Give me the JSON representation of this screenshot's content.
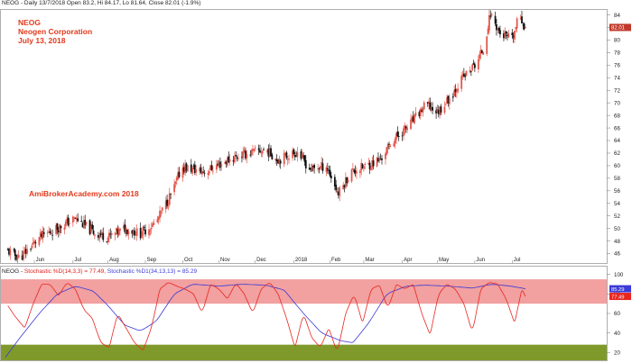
{
  "header": {
    "price_line": "NEOG - Daily 13/7/2018 Open 83.2, Hi 84.17, Lo 81.64, Close 82.01 (-1.9%)",
    "ticker": "NEOG",
    "company": "Neogen Corporation",
    "date": "July 13, 2018",
    "watermark": "AmiBrokerAcademy.com  2018"
  },
  "indicator_header": {
    "prefix": "NEOG - ",
    "stoch_d": "Stochastic %D(14,3,3) = 77.49,",
    "stoch_d1": "Stochastic %D1(34,13,13) = 85.29"
  },
  "colors": {
    "candle_up": "#e2574c",
    "candle_down": "#111111",
    "stoch_fast": "#e8261f",
    "stoch_slow": "#3a3ad6",
    "overbought_band": "#f2a0a0",
    "oversold_band": "#7f9a2a",
    "price_badge": "#c0392b",
    "d1_badge": "#3b3bd8"
  },
  "chart_data": [
    {
      "type": "candlestick",
      "title": "NEOG - Daily",
      "x_axis_labels": [
        "Jun",
        "Jul",
        "Aug",
        "Sep",
        "Oct",
        "Nov",
        "Dec",
        "2018",
        "Feb",
        "Mar",
        "Apr",
        "May",
        "Jun",
        "Jul"
      ],
      "y_ticks": [
        46,
        48,
        50,
        52,
        54,
        56,
        58,
        60,
        62,
        64,
        66,
        68,
        70,
        72,
        74,
        76,
        78,
        80,
        82,
        84
      ],
      "ylim": [
        44.5,
        84.8
      ],
      "last_price_label": "82.01",
      "close_anchor_points": [
        {
          "date": "2017-05-10",
          "close": 46.4
        },
        {
          "date": "2017-05-20",
          "close": 45.3
        },
        {
          "date": "2017-06-05",
          "close": 48.5
        },
        {
          "date": "2017-06-25",
          "close": 50.6
        },
        {
          "date": "2017-07-05",
          "close": 51.6
        },
        {
          "date": "2017-07-20",
          "close": 49.4
        },
        {
          "date": "2017-08-01",
          "close": 48.6
        },
        {
          "date": "2017-08-15",
          "close": 50.0
        },
        {
          "date": "2017-08-28",
          "close": 49.2
        },
        {
          "date": "2017-09-10",
          "close": 51.0
        },
        {
          "date": "2017-09-25",
          "close": 56.5
        },
        {
          "date": "2017-10-01",
          "close": 59.8
        },
        {
          "date": "2017-10-20",
          "close": 59.0
        },
        {
          "date": "2017-11-10",
          "close": 61.0
        },
        {
          "date": "2017-11-25",
          "close": 62.0
        },
        {
          "date": "2017-12-10",
          "close": 62.5
        },
        {
          "date": "2017-12-20",
          "close": 61.0
        },
        {
          "date": "2018-01-05",
          "close": 62.2
        },
        {
          "date": "2018-01-15",
          "close": 59.5
        },
        {
          "date": "2018-01-29",
          "close": 60.0
        },
        {
          "date": "2018-02-08",
          "close": 55.5
        },
        {
          "date": "2018-02-18",
          "close": 59.0
        },
        {
          "date": "2018-03-01",
          "close": 59.8
        },
        {
          "date": "2018-03-15",
          "close": 61.0
        },
        {
          "date": "2018-03-25",
          "close": 64.0
        },
        {
          "date": "2018-04-08",
          "close": 66.5
        },
        {
          "date": "2018-04-22",
          "close": 69.8
        },
        {
          "date": "2018-05-01",
          "close": 68.5
        },
        {
          "date": "2018-05-12",
          "close": 71.0
        },
        {
          "date": "2018-05-20",
          "close": 73.5
        },
        {
          "date": "2018-06-01",
          "close": 76.0
        },
        {
          "date": "2018-06-08",
          "close": 78.5
        },
        {
          "date": "2018-06-14",
          "close": 84.2
        },
        {
          "date": "2018-06-22",
          "close": 81.0
        },
        {
          "date": "2018-07-02",
          "close": 80.0
        },
        {
          "date": "2018-07-08",
          "close": 84.0
        },
        {
          "date": "2018-07-13",
          "close": 82.01
        }
      ],
      "legend": "none",
      "grid": false
    },
    {
      "type": "line",
      "title": "Stochastic",
      "y_ticks": [
        20,
        40,
        60,
        80,
        100
      ],
      "ylim": [
        12,
        108
      ],
      "overbought_band": [
        70,
        95
      ],
      "oversold_band": [
        12,
        28
      ],
      "series": [
        {
          "name": "Stochastic %D(14,3,3)",
          "last_value": "77.49",
          "anchor_points": [
            {
              "date": "2017-05-10",
              "value": 68
            },
            {
              "date": "2017-05-16",
              "value": 57
            },
            {
              "date": "2017-05-24",
              "value": 45
            },
            {
              "date": "2017-05-31",
              "value": 70
            },
            {
              "date": "2017-06-07",
              "value": 90
            },
            {
              "date": "2017-06-14",
              "value": 90
            },
            {
              "date": "2017-06-21",
              "value": 78
            },
            {
              "date": "2017-06-28",
              "value": 92
            },
            {
              "date": "2017-07-05",
              "value": 85
            },
            {
              "date": "2017-07-12",
              "value": 64
            },
            {
              "date": "2017-07-19",
              "value": 55
            },
            {
              "date": "2017-07-26",
              "value": 30
            },
            {
              "date": "2017-08-02",
              "value": 25
            },
            {
              "date": "2017-08-09",
              "value": 60
            },
            {
              "date": "2017-08-16",
              "value": 45
            },
            {
              "date": "2017-08-23",
              "value": 30
            },
            {
              "date": "2017-08-30",
              "value": 22
            },
            {
              "date": "2017-09-06",
              "value": 45
            },
            {
              "date": "2017-09-13",
              "value": 85
            },
            {
              "date": "2017-09-20",
              "value": 92
            },
            {
              "date": "2017-09-27",
              "value": 88
            },
            {
              "date": "2017-10-04",
              "value": 85
            },
            {
              "date": "2017-10-11",
              "value": 80
            },
            {
              "date": "2017-10-18",
              "value": 60
            },
            {
              "date": "2017-10-25",
              "value": 90
            },
            {
              "date": "2017-11-01",
              "value": 85
            },
            {
              "date": "2017-11-08",
              "value": 75
            },
            {
              "date": "2017-11-15",
              "value": 91
            },
            {
              "date": "2017-11-22",
              "value": 80
            },
            {
              "date": "2017-11-29",
              "value": 60
            },
            {
              "date": "2017-12-06",
              "value": 85
            },
            {
              "date": "2017-12-13",
              "value": 92
            },
            {
              "date": "2017-12-20",
              "value": 80
            },
            {
              "date": "2017-12-27",
              "value": 55
            },
            {
              "date": "2018-01-03",
              "value": 25
            },
            {
              "date": "2018-01-10",
              "value": 60
            },
            {
              "date": "2018-01-17",
              "value": 35
            },
            {
              "date": "2018-01-24",
              "value": 25
            },
            {
              "date": "2018-01-31",
              "value": 45
            },
            {
              "date": "2018-02-07",
              "value": 20
            },
            {
              "date": "2018-02-14",
              "value": 60
            },
            {
              "date": "2018-02-21",
              "value": 80
            },
            {
              "date": "2018-02-28",
              "value": 50
            },
            {
              "date": "2018-03-07",
              "value": 85
            },
            {
              "date": "2018-03-14",
              "value": 89
            },
            {
              "date": "2018-03-21",
              "value": 65
            },
            {
              "date": "2018-03-28",
              "value": 90
            },
            {
              "date": "2018-04-04",
              "value": 85
            },
            {
              "date": "2018-04-11",
              "value": 90
            },
            {
              "date": "2018-04-18",
              "value": 60
            },
            {
              "date": "2018-04-25",
              "value": 38
            },
            {
              "date": "2018-05-02",
              "value": 80
            },
            {
              "date": "2018-05-09",
              "value": 90
            },
            {
              "date": "2018-05-16",
              "value": 85
            },
            {
              "date": "2018-05-23",
              "value": 70
            },
            {
              "date": "2018-05-30",
              "value": 40
            },
            {
              "date": "2018-06-06",
              "value": 85
            },
            {
              "date": "2018-06-13",
              "value": 92
            },
            {
              "date": "2018-06-20",
              "value": 90
            },
            {
              "date": "2018-06-27",
              "value": 75
            },
            {
              "date": "2018-07-04",
              "value": 50
            },
            {
              "date": "2018-07-10",
              "value": 85
            },
            {
              "date": "2018-07-13",
              "value": 77.49
            }
          ]
        },
        {
          "name": "Stochastic %D1(34,13,13)",
          "last_value": "85.29",
          "anchor_points": [
            {
              "date": "2017-05-08",
              "value": 15
            },
            {
              "date": "2017-05-20",
              "value": 35
            },
            {
              "date": "2017-06-05",
              "value": 60
            },
            {
              "date": "2017-06-20",
              "value": 80
            },
            {
              "date": "2017-07-05",
              "value": 88
            },
            {
              "date": "2017-07-20",
              "value": 83
            },
            {
              "date": "2017-08-01",
              "value": 68
            },
            {
              "date": "2017-08-15",
              "value": 48
            },
            {
              "date": "2017-08-28",
              "value": 42
            },
            {
              "date": "2017-09-10",
              "value": 52
            },
            {
              "date": "2017-09-25",
              "value": 80
            },
            {
              "date": "2017-10-10",
              "value": 90
            },
            {
              "date": "2017-11-01",
              "value": 88
            },
            {
              "date": "2017-11-20",
              "value": 90
            },
            {
              "date": "2017-12-10",
              "value": 89
            },
            {
              "date": "2017-12-25",
              "value": 84
            },
            {
              "date": "2018-01-10",
              "value": 60
            },
            {
              "date": "2018-01-25",
              "value": 40
            },
            {
              "date": "2018-02-10",
              "value": 32
            },
            {
              "date": "2018-02-20",
              "value": 30
            },
            {
              "date": "2018-03-05",
              "value": 50
            },
            {
              "date": "2018-03-20",
              "value": 80
            },
            {
              "date": "2018-04-05",
              "value": 88
            },
            {
              "date": "2018-04-20",
              "value": 89
            },
            {
              "date": "2018-05-10",
              "value": 88
            },
            {
              "date": "2018-05-30",
              "value": 86
            },
            {
              "date": "2018-06-15",
              "value": 90
            },
            {
              "date": "2018-07-01",
              "value": 88
            },
            {
              "date": "2018-07-13",
              "value": 85.29
            }
          ]
        }
      ],
      "legend": "top-left",
      "grid": false
    }
  ]
}
